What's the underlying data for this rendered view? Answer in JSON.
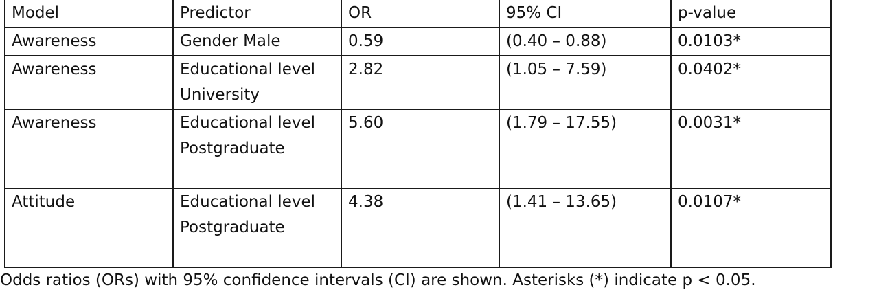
{
  "table": {
    "headers": [
      "Model",
      "Predictor",
      "OR",
      "95% CI",
      "p-value"
    ],
    "rows": [
      {
        "model": "Awareness",
        "predictor": "Gender Male",
        "or": "0.59",
        "ci": "(0.40 – 0.88)",
        "p": "0.0103*"
      },
      {
        "model": "Awareness",
        "predictor": "Educational level University",
        "or": "2.82",
        "ci": "(1.05 – 7.59)",
        "p": "0.0402*"
      },
      {
        "model": "Awareness",
        "predictor": "Educational level Postgraduate",
        "or": "5.60",
        "ci": "(1.79 – 17.55)",
        "p": "0.0031*"
      },
      {
        "model": "Attitude",
        "predictor": "Educational level Postgraduate",
        "or": "4.38",
        "ci": "(1.41 – 13.65)",
        "p": "0.0107*"
      }
    ]
  },
  "footnote": "Odds ratios (ORs) with 95% confidence intervals (CI) are shown. Asterisks (*) indicate p < 0.05."
}
